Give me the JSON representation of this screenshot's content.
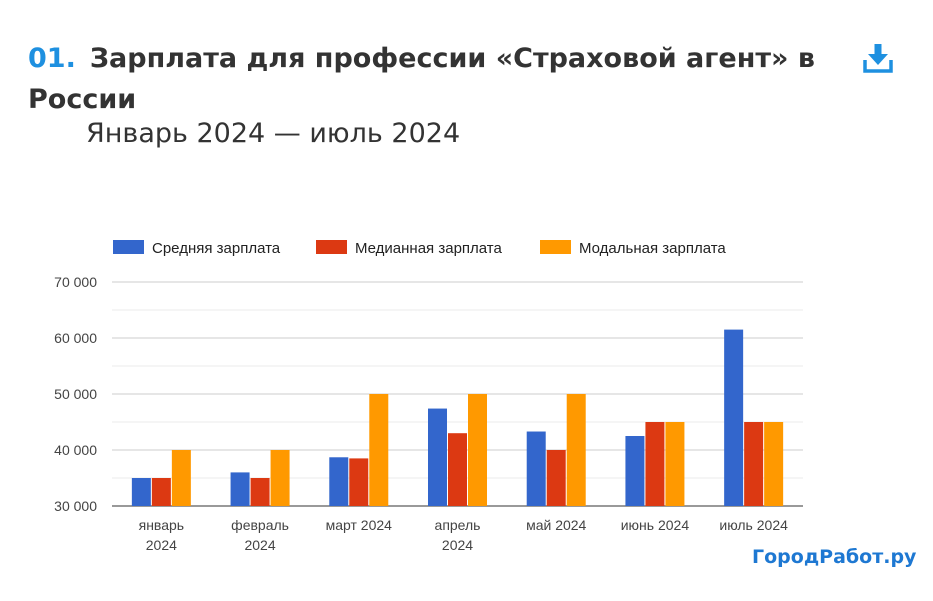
{
  "header": {
    "number": "01.",
    "title": "Зарплата для профессии «Страховой агент» в России",
    "subtitle": "Январь 2024 — июль 2024",
    "download_icon": "download-icon"
  },
  "brand": "ГородРабот.ру",
  "colors": {
    "accent": "#1e90e0",
    "series": [
      "#3366cc",
      "#dc3912",
      "#ff9900"
    ]
  },
  "chart_data": {
    "type": "bar",
    "categories": [
      [
        "январь",
        "2024"
      ],
      [
        "февраль",
        "2024"
      ],
      [
        "март 2024"
      ],
      [
        "апрель",
        "2024"
      ],
      [
        "май 2024"
      ],
      [
        "июнь 2024"
      ],
      [
        "июль 2024"
      ]
    ],
    "series": [
      {
        "name": "Средняя зарплата",
        "values": [
          35000,
          36000,
          38700,
          47400,
          43300,
          42500,
          61500
        ]
      },
      {
        "name": "Медианная зарплата",
        "values": [
          35000,
          35000,
          38500,
          43000,
          40000,
          45000,
          45000
        ]
      },
      {
        "name": "Модальная зарплата",
        "values": [
          40000,
          40000,
          50000,
          50000,
          50000,
          45000,
          45000
        ]
      }
    ],
    "yticks": [
      "30 000",
      "40 000",
      "50 000",
      "60 000",
      "70 000"
    ],
    "ytick_values": [
      30000,
      40000,
      50000,
      60000,
      70000
    ],
    "ylim": [
      30000,
      70000
    ],
    "grid": true,
    "legend_position": "top"
  }
}
